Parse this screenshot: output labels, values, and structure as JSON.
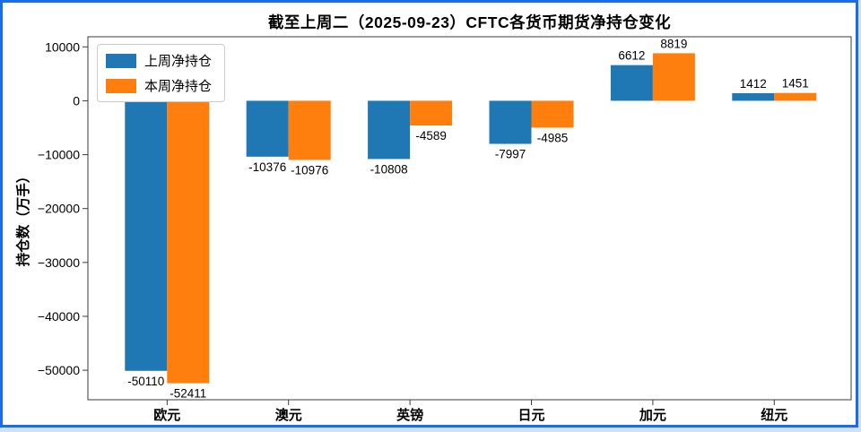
{
  "window": {
    "frame_color": "#cfe1f8",
    "border_color": "#1a6ce8",
    "background": "#ffffff"
  },
  "colors": {
    "spine": "#3b3b3b",
    "tick_text": "#000000",
    "legend_border": "#cccccc",
    "series_blue": "#1f77b4",
    "series_orange": "#ff7f0e"
  },
  "chart_data": {
    "type": "bar",
    "title": "截至上周二（2025-09-23）CFTC各货币期货净持仓变化",
    "ylabel": "持仓数（万手）",
    "xlabel": "",
    "categories": [
      "欧元",
      "澳元",
      "英镑",
      "日元",
      "加元",
      "纽元"
    ],
    "category_keys": [
      "eur",
      "aud",
      "gbp",
      "jpy",
      "cad",
      "nzd"
    ],
    "series": [
      {
        "name": "上周净持仓",
        "key": "prev-week",
        "color": "#1f77b4",
        "values": [
          -50110,
          -10376,
          -10808,
          -7997,
          6612,
          1412
        ]
      },
      {
        "name": "本周净持仓",
        "key": "this-week",
        "color": "#ff7f0e",
        "values": [
          -52411,
          -10976,
          -4589,
          -4985,
          8819,
          1451
        ]
      }
    ],
    "y_ticks": [
      10000,
      0,
      -10000,
      -20000,
      -30000,
      -40000,
      -50000
    ],
    "ylim": [
      -55472,
      11880
    ],
    "grid": false,
    "legend_position": "upper-left",
    "bar_value_labels": true
  }
}
